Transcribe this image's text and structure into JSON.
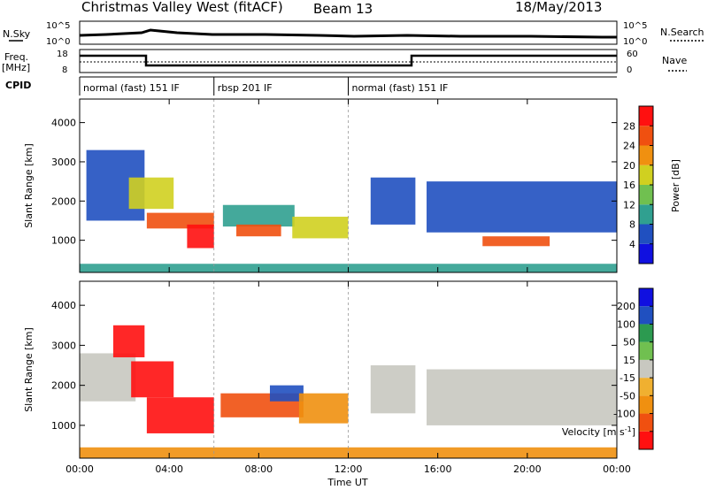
{
  "header": {
    "station": "Christmas Valley West (fitACF)",
    "beam": "Beam 13",
    "date": "18/May/2013"
  },
  "noise_panel": {
    "left_label": "N.Sky",
    "right_label": "N.Search",
    "left_ticks": [
      "10^5",
      "10^0"
    ],
    "right_ticks": [
      "10^5",
      "10^0"
    ]
  },
  "freq_panel": {
    "left_label_line1": "Freq.",
    "left_label_line2": "[MHz]",
    "right_label": "Nave",
    "left_ticks": [
      "18",
      "8"
    ],
    "right_ticks": [
      "60",
      "0"
    ]
  },
  "cpid": {
    "label": "CPID",
    "segments": [
      {
        "name": "normal (fast) 151 IF",
        "start_h": 0,
        "end_h": 6
      },
      {
        "name": "rbsp 201 IF",
        "start_h": 6,
        "end_h": 12
      },
      {
        "name": "normal (fast) 151 IF",
        "start_h": 12,
        "end_h": 24
      }
    ]
  },
  "chart_data": [
    {
      "type": "heatmap",
      "name": "power",
      "ylabel": "Slant Range [km]",
      "xlim": [
        0,
        24
      ],
      "ylim": [
        180,
        4600
      ],
      "yticks": [
        "1000",
        "2000",
        "3000",
        "4000"
      ],
      "colorbar": {
        "label": "Power [dB]",
        "colors": [
          "#1010e0",
          "#2050c0",
          "#30a090",
          "#70c050",
          "#d0d020",
          "#f09010",
          "#f05010",
          "#ff1010"
        ],
        "tick_labels": [
          "4",
          "8",
          "12",
          "16",
          "20",
          "24",
          "28"
        ]
      },
      "regions": [
        {
          "t0": 0.3,
          "t1": 2.9,
          "r0": 1500,
          "r1": 3300,
          "level": 1
        },
        {
          "t0": 2.2,
          "t1": 4.2,
          "r0": 1800,
          "r1": 2600,
          "level": 4
        },
        {
          "t0": 3.0,
          "t1": 6.0,
          "r0": 1300,
          "r1": 1700,
          "level": 6
        },
        {
          "t0": 4.8,
          "t1": 6.0,
          "r0": 800,
          "r1": 1400,
          "level": 7
        },
        {
          "t0": 6.4,
          "t1": 9.6,
          "r0": 1350,
          "r1": 1900,
          "level": 2
        },
        {
          "t0": 7.0,
          "t1": 9.0,
          "r0": 1100,
          "r1": 1400,
          "level": 6
        },
        {
          "t0": 9.5,
          "t1": 12.0,
          "r0": 1050,
          "r1": 1600,
          "level": 4
        },
        {
          "t0": 13.0,
          "t1": 15.0,
          "r0": 1400,
          "r1": 2600,
          "level": 1
        },
        {
          "t0": 15.5,
          "t1": 24.0,
          "r0": 1200,
          "r1": 2500,
          "level": 1
        },
        {
          "t0": 18.0,
          "t1": 21.0,
          "r0": 850,
          "r1": 1100,
          "level": 6
        },
        {
          "t0": 0.0,
          "t1": 24.0,
          "r0": 180,
          "r1": 400,
          "level": 2
        }
      ]
    },
    {
      "type": "heatmap",
      "name": "velocity",
      "xlabel": "Time UT",
      "ylabel": "Slant Range [km]",
      "xlim": [
        0,
        24
      ],
      "ylim": [
        180,
        4600
      ],
      "xticks": [
        "00:00",
        "04:00",
        "08:00",
        "12:00",
        "16:00",
        "20:00",
        "00:00"
      ],
      "yticks": [
        "1000",
        "2000",
        "3000",
        "4000"
      ],
      "colorbar": {
        "label": "Velocity [m s^-1]",
        "colors": [
          "#ff1010",
          "#f05010",
          "#f09010",
          "#f0b030",
          "#c8c8c0",
          "#70c050",
          "#2c9a50",
          "#2050c0",
          "#1010e0"
        ],
        "tick_labels": [
          "-200",
          "-100",
          "-50",
          "-15",
          "15",
          "50",
          "100",
          "200"
        ]
      },
      "regions": [
        {
          "t0": 0.0,
          "t1": 2.5,
          "r0": 1600,
          "r1": 2800,
          "level": 4
        },
        {
          "t0": 1.5,
          "t1": 2.9,
          "r0": 2700,
          "r1": 3500,
          "level": 0
        },
        {
          "t0": 2.3,
          "t1": 4.2,
          "r0": 1700,
          "r1": 2600,
          "level": 0
        },
        {
          "t0": 3.0,
          "t1": 6.0,
          "r0": 800,
          "r1": 1700,
          "level": 0
        },
        {
          "t0": 6.3,
          "t1": 10.0,
          "r0": 1200,
          "r1": 1800,
          "level": 1
        },
        {
          "t0": 8.5,
          "t1": 10.0,
          "r0": 1600,
          "r1": 2000,
          "level": 7
        },
        {
          "t0": 9.8,
          "t1": 12.0,
          "r0": 1050,
          "r1": 1800,
          "level": 2
        },
        {
          "t0": 13.0,
          "t1": 15.0,
          "r0": 1300,
          "r1": 2500,
          "level": 4
        },
        {
          "t0": 15.5,
          "t1": 24.0,
          "r0": 1000,
          "r1": 2400,
          "level": 4
        },
        {
          "t0": 0.0,
          "t1": 24.0,
          "r0": 180,
          "r1": 450,
          "level": 2
        }
      ]
    }
  ]
}
